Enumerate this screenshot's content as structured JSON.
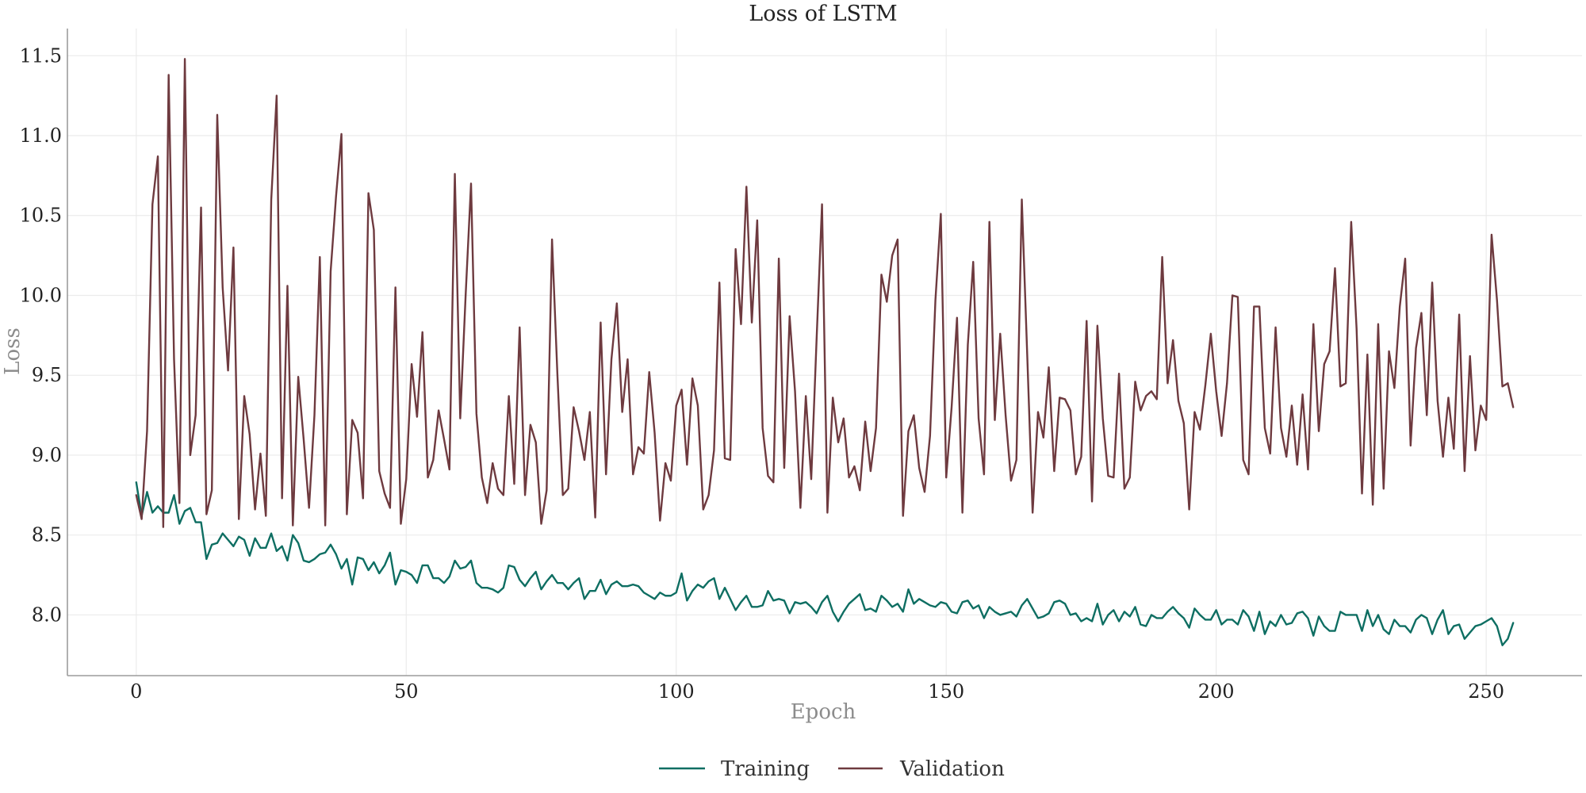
{
  "chart_data": {
    "type": "line",
    "title": "Loss of LSTM",
    "xlabel": "Epoch",
    "ylabel": "Loss",
    "xlim": [
      -12.75,
      267.75
    ],
    "ylim": [
      7.62,
      11.67
    ],
    "xticks": [
      0,
      50,
      100,
      150,
      200,
      250
    ],
    "xtick_labels": [
      "0",
      "50",
      "100",
      "150",
      "200",
      "250"
    ],
    "yticks": [
      8.0,
      8.5,
      9.0,
      9.5,
      10.0,
      10.5,
      11.0,
      11.5
    ],
    "ytick_labels": [
      "8.0",
      "8.5",
      "9.0",
      "9.5",
      "10.0",
      "10.5",
      "11.0",
      "11.5"
    ],
    "grid": true,
    "legend_position": "bottom-center",
    "x": [
      0,
      1,
      2,
      3,
      4,
      5,
      6,
      7,
      8,
      9,
      10,
      11,
      12,
      13,
      14,
      15,
      16,
      17,
      18,
      19,
      20,
      21,
      22,
      23,
      24,
      25,
      26,
      27,
      28,
      29,
      30,
      31,
      32,
      33,
      34,
      35,
      36,
      37,
      38,
      39,
      40,
      41,
      42,
      43,
      44,
      45,
      46,
      47,
      48,
      49,
      50,
      51,
      52,
      53,
      54,
      55,
      56,
      57,
      58,
      59,
      60,
      61,
      62,
      63,
      64,
      65,
      66,
      67,
      68,
      69,
      70,
      71,
      72,
      73,
      74,
      75,
      76,
      77,
      78,
      79,
      80,
      81,
      82,
      83,
      84,
      85,
      86,
      87,
      88,
      89,
      90,
      91,
      92,
      93,
      94,
      95,
      96,
      97,
      98,
      99,
      100,
      101,
      102,
      103,
      104,
      105,
      106,
      107,
      108,
      109,
      110,
      111,
      112,
      113,
      114,
      115,
      116,
      117,
      118,
      119,
      120,
      121,
      122,
      123,
      124,
      125,
      126,
      127,
      128,
      129,
      130,
      131,
      132,
      133,
      134,
      135,
      136,
      137,
      138,
      139,
      140,
      141,
      142,
      143,
      144,
      145,
      146,
      147,
      148,
      149,
      150,
      151,
      152,
      153,
      154,
      155,
      156,
      157,
      158,
      159,
      160,
      161,
      162,
      163,
      164,
      165,
      166,
      167,
      168,
      169,
      170,
      171,
      172,
      173,
      174,
      175,
      176,
      177,
      178,
      179,
      180,
      181,
      182,
      183,
      184,
      185,
      186,
      187,
      188,
      189,
      190,
      191,
      192,
      193,
      194,
      195,
      196,
      197,
      198,
      199,
      200,
      201,
      202,
      203,
      204,
      205,
      206,
      207,
      208,
      209,
      210,
      211,
      212,
      213,
      214,
      215,
      216,
      217,
      218,
      219,
      220,
      221,
      222,
      223,
      224,
      225,
      226,
      227,
      228,
      229,
      230,
      231,
      232,
      233,
      234,
      235,
      236,
      237,
      238,
      239,
      240,
      241,
      242,
      243,
      244,
      245,
      246,
      247,
      248,
      249,
      250,
      251,
      252,
      253,
      254,
      255
    ],
    "series": [
      {
        "name": "Training",
        "color": "#0e6e62",
        "values": [
          8.83,
          8.62,
          8.77,
          8.64,
          8.68,
          8.64,
          8.64,
          8.75,
          8.57,
          8.65,
          8.67,
          8.58,
          8.58,
          8.35,
          8.44,
          8.45,
          8.51,
          8.47,
          8.43,
          8.49,
          8.47,
          8.37,
          8.48,
          8.42,
          8.42,
          8.51,
          8.4,
          8.43,
          8.34,
          8.5,
          8.45,
          8.34,
          8.33,
          8.35,
          8.38,
          8.39,
          8.44,
          8.38,
          8.29,
          8.35,
          8.19,
          8.36,
          8.35,
          8.28,
          8.33,
          8.26,
          8.31,
          8.39,
          8.19,
          8.28,
          8.27,
          8.25,
          8.2,
          8.31,
          8.31,
          8.23,
          8.23,
          8.2,
          8.24,
          8.34,
          8.29,
          8.3,
          8.34,
          8.2,
          8.17,
          8.17,
          8.16,
          8.14,
          8.17,
          8.31,
          8.3,
          8.22,
          8.18,
          8.23,
          8.27,
          8.16,
          8.21,
          8.25,
          8.2,
          8.2,
          8.16,
          8.2,
          8.23,
          8.1,
          8.15,
          8.15,
          8.22,
          8.13,
          8.19,
          8.21,
          8.18,
          8.18,
          8.19,
          8.18,
          8.14,
          8.12,
          8.1,
          8.14,
          8.12,
          8.12,
          8.14,
          8.26,
          8.09,
          8.15,
          8.19,
          8.17,
          8.21,
          8.23,
          8.1,
          8.17,
          8.1,
          8.03,
          8.08,
          8.12,
          8.05,
          8.05,
          8.06,
          8.15,
          8.09,
          8.1,
          8.09,
          8.01,
          8.08,
          8.07,
          8.08,
          8.05,
          8.01,
          8.08,
          8.12,
          8.02,
          7.96,
          8.02,
          8.07,
          8.1,
          8.13,
          8.03,
          8.04,
          8.02,
          8.12,
          8.09,
          8.05,
          8.07,
          8.02,
          8.16,
          8.07,
          8.1,
          8.08,
          8.06,
          8.05,
          8.08,
          8.07,
          8.02,
          8.01,
          8.08,
          8.09,
          8.04,
          8.06,
          7.98,
          8.05,
          8.02,
          8.0,
          8.01,
          8.02,
          7.99,
          8.06,
          8.1,
          8.04,
          7.98,
          7.99,
          8.01,
          8.08,
          8.09,
          8.07,
          8.0,
          8.01,
          7.96,
          7.98,
          7.96,
          8.07,
          7.94,
          8.0,
          8.03,
          7.96,
          8.02,
          7.99,
          8.05,
          7.94,
          7.93,
          8.0,
          7.98,
          7.98,
          8.02,
          8.05,
          8.01,
          7.98,
          7.92,
          8.04,
          8.0,
          7.97,
          7.97,
          8.03,
          7.94,
          7.97,
          7.97,
          7.94,
          8.03,
          7.99,
          7.9,
          8.02,
          7.88,
          7.96,
          7.93,
          8.0,
          7.94,
          7.95,
          8.01,
          8.02,
          7.98,
          7.87,
          7.99,
          7.93,
          7.9,
          7.9,
          8.02,
          8.0,
          8.0,
          8.0,
          7.9,
          8.03,
          7.93,
          8.0,
          7.91,
          7.88,
          7.97,
          7.93,
          7.93,
          7.89,
          7.97,
          8.0,
          7.98,
          7.88,
          7.97,
          8.03,
          7.88,
          7.93,
          7.94,
          7.85,
          7.89,
          7.93,
          7.94,
          7.96,
          7.98,
          7.93,
          7.81,
          7.85,
          7.95
        ]
      },
      {
        "name": "Validation",
        "color": "#6e3a3f",
        "values": [
          8.75,
          8.6,
          9.15,
          10.57,
          10.87,
          8.55,
          11.38,
          9.6,
          8.7,
          11.48,
          9.0,
          9.25,
          10.55,
          8.63,
          8.78,
          11.13,
          10.05,
          9.53,
          10.3,
          8.6,
          9.37,
          9.13,
          8.66,
          9.01,
          8.62,
          10.6,
          11.25,
          8.73,
          10.06,
          8.56,
          9.49,
          9.1,
          8.67,
          9.25,
          10.24,
          8.56,
          10.15,
          10.62,
          11.01,
          8.63,
          9.22,
          9.14,
          8.73,
          10.64,
          10.41,
          8.9,
          8.76,
          8.67,
          10.05,
          8.57,
          8.85,
          9.57,
          9.24,
          9.77,
          8.86,
          8.97,
          9.28,
          9.1,
          8.91,
          10.76,
          9.23,
          10.0,
          10.7,
          9.26,
          8.86,
          8.7,
          8.95,
          8.79,
          8.75,
          9.37,
          8.82,
          9.8,
          8.75,
          9.19,
          9.08,
          8.57,
          8.78,
          10.35,
          9.5,
          8.75,
          8.79,
          9.3,
          9.15,
          8.97,
          9.27,
          8.61,
          9.83,
          8.88,
          9.6,
          9.95,
          9.27,
          9.6,
          8.88,
          9.05,
          9.01,
          9.52,
          9.14,
          8.59,
          8.95,
          8.84,
          9.31,
          9.41,
          8.94,
          9.48,
          9.31,
          8.66,
          8.75,
          9.03,
          10.08,
          8.98,
          8.97,
          10.29,
          9.82,
          10.68,
          9.83,
          10.47,
          9.17,
          8.87,
          8.83,
          10.23,
          8.92,
          9.87,
          9.4,
          8.67,
          9.37,
          8.85,
          9.73,
          10.57,
          8.64,
          9.36,
          9.08,
          9.23,
          8.86,
          8.93,
          8.78,
          9.21,
          8.9,
          9.17,
          10.13,
          9.96,
          10.25,
          10.35,
          8.62,
          9.15,
          9.25,
          8.92,
          8.77,
          9.12,
          9.97,
          10.51,
          8.86,
          9.3,
          9.86,
          8.64,
          9.69,
          10.21,
          9.23,
          8.88,
          10.46,
          9.22,
          9.76,
          9.25,
          8.84,
          8.97,
          10.6,
          9.63,
          8.64,
          9.27,
          9.11,
          9.55,
          8.9,
          9.36,
          9.35,
          9.28,
          8.88,
          8.99,
          9.84,
          8.71,
          9.81,
          9.23,
          8.87,
          8.86,
          9.51,
          8.79,
          8.86,
          9.46,
          9.28,
          9.37,
          9.4,
          9.35,
          10.24,
          9.45,
          9.72,
          9.34,
          9.2,
          8.66,
          9.27,
          9.16,
          9.44,
          9.76,
          9.4,
          9.12,
          9.45,
          10.0,
          9.99,
          8.97,
          8.88,
          9.93,
          9.93,
          9.17,
          9.01,
          9.8,
          9.17,
          8.99,
          9.31,
          8.94,
          9.38,
          8.91,
          9.82,
          9.15,
          9.57,
          9.65,
          10.17,
          9.43,
          9.45,
          10.46,
          9.79,
          8.76,
          9.63,
          8.69,
          9.82,
          8.79,
          9.65,
          9.42,
          9.93,
          10.23,
          9.06,
          9.67,
          9.89,
          9.25,
          10.08,
          9.34,
          8.99,
          9.36,
          9.04,
          9.88,
          8.9,
          9.62,
          9.03,
          9.31,
          9.22,
          10.38,
          9.97,
          9.43,
          9.45,
          9.3
        ]
      }
    ]
  }
}
